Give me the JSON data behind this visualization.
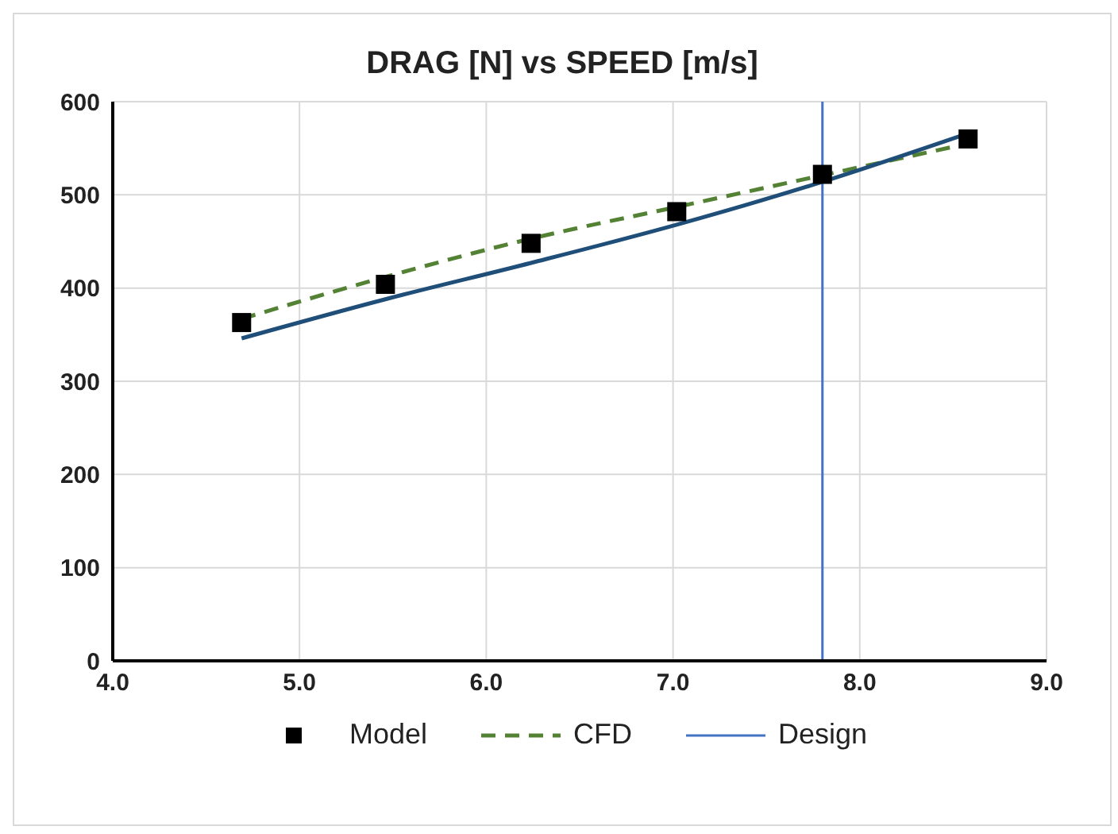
{
  "chart_data": {
    "type": "line",
    "title": "DRAG [N] vs SPEED [m/s]",
    "xlim": [
      4,
      9
    ],
    "xticks": [
      {
        "value": 4,
        "label": "4.0"
      },
      {
        "value": 5,
        "label": "5.0"
      },
      {
        "value": 6,
        "label": "6.0"
      },
      {
        "value": 7,
        "label": "7.0"
      },
      {
        "value": 8,
        "label": "8.0"
      },
      {
        "value": 9,
        "label": "9.0"
      }
    ],
    "ylim": [
      0,
      600
    ],
    "yticks": [
      0,
      100,
      200,
      300,
      400,
      500,
      600
    ],
    "grid": true,
    "legend": "bottom",
    "series": [
      {
        "name": "Model",
        "type": "scatter",
        "marker": "square",
        "color": "#000000",
        "x": [
          4.69,
          5.46,
          6.24,
          7.02,
          7.8,
          8.58
        ],
        "values": [
          363,
          404,
          448,
          482,
          522,
          560
        ]
      },
      {
        "name": "CFD",
        "line_style": "dashed",
        "marker": "none",
        "color": "#548235",
        "x": [
          4.69,
          5.46,
          6.24,
          7.02,
          7.8,
          8.58
        ],
        "values": [
          367,
          412,
          453,
          487,
          521,
          555
        ]
      },
      {
        "line_style": "solid",
        "marker": "none",
        "color": "#1f4e79",
        "x": [
          4.69,
          5.46,
          6.24,
          7.02,
          7.8,
          8.58
        ],
        "values": [
          346,
          388,
          427,
          468,
          514,
          566
        ]
      },
      {
        "name": "Design",
        "line_style": "solid",
        "marker": "none",
        "color": "#4472c4",
        "x": [
          7.8,
          7.8
        ],
        "values": [
          0,
          600
        ]
      }
    ]
  }
}
